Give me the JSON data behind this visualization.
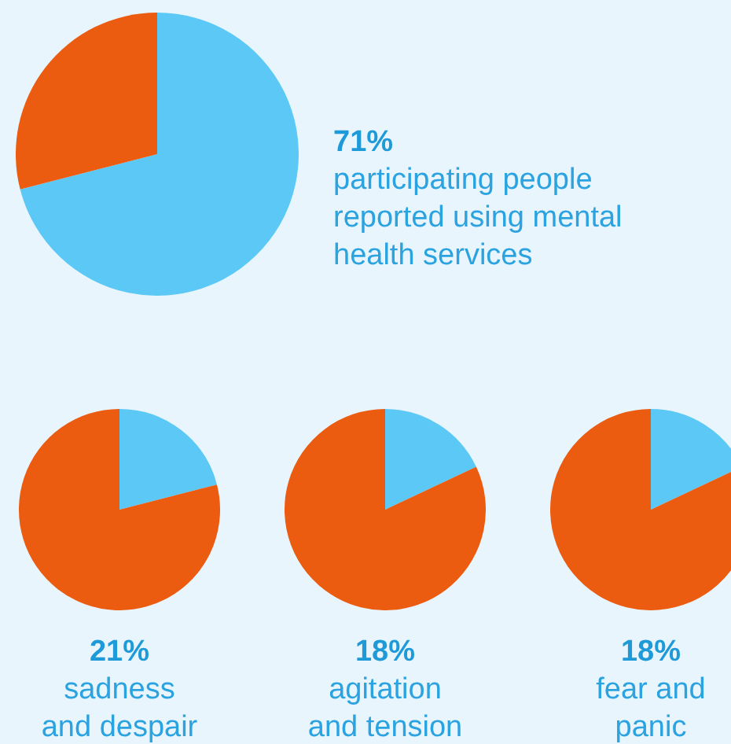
{
  "chart_data": [
    {
      "type": "pie",
      "title": "71%",
      "subtitle": "participating people reported using mental health services",
      "categories": [
        null,
        null
      ],
      "values": [
        71,
        29
      ],
      "colors": [
        "#5bc8f5",
        "#eb5b10"
      ]
    },
    {
      "type": "pie",
      "title": "21%",
      "subtitle": "sadness and despair",
      "categories": [
        null,
        null
      ],
      "values": [
        21,
        79
      ],
      "colors": [
        "#5bc8f5",
        "#eb5b10"
      ]
    },
    {
      "type": "pie",
      "title": "18%",
      "subtitle": "agitation and tension",
      "categories": [
        null,
        null
      ],
      "values": [
        18,
        82
      ],
      "colors": [
        "#5bc8f5",
        "#eb5b10"
      ]
    },
    {
      "type": "pie",
      "title": "18%",
      "subtitle": "fear and panic",
      "categories": [
        null,
        null
      ],
      "values": [
        18,
        82
      ],
      "colors": [
        "#5bc8f5",
        "#eb5b10"
      ]
    }
  ]
}
